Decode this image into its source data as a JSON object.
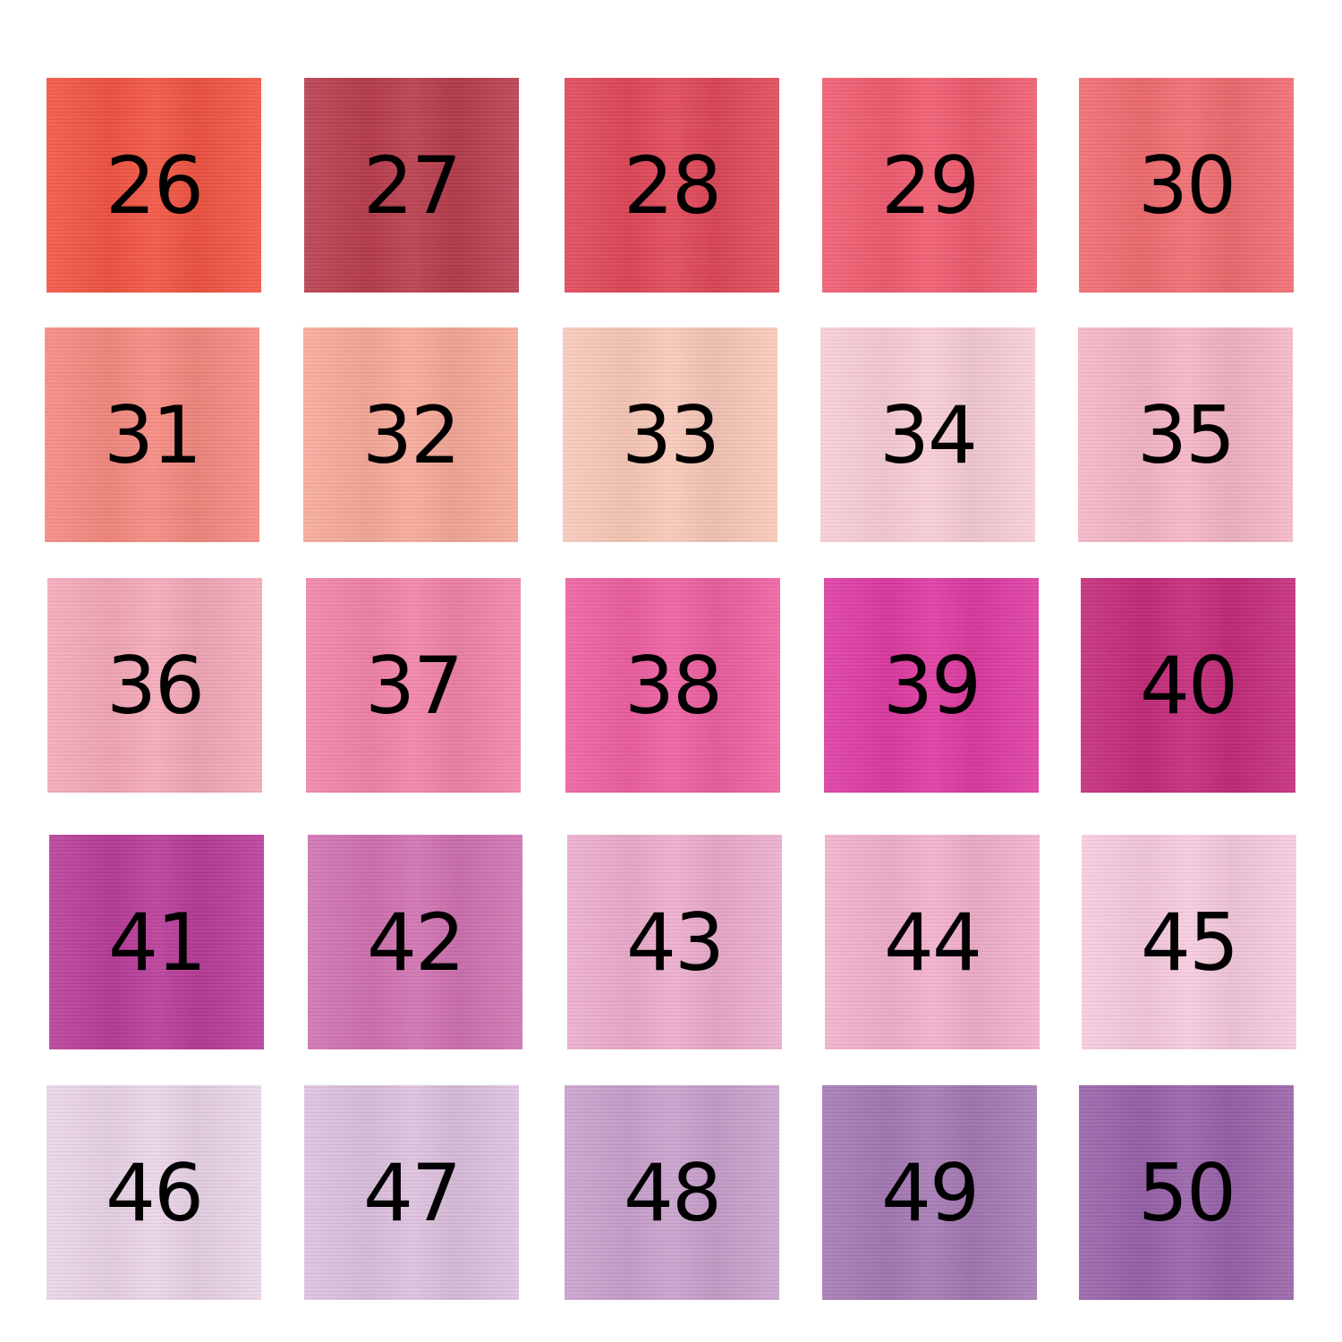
{
  "swatches": [
    {
      "label": "26",
      "color": "#f2523f"
    },
    {
      "label": "27",
      "color": "#b83a4b"
    },
    {
      "label": "28",
      "color": "#e04556"
    },
    {
      "label": "29",
      "color": "#f05a6e"
    },
    {
      "label": "30",
      "color": "#f06a6e"
    },
    {
      "label": "31",
      "color": "#f5887e"
    },
    {
      "label": "32",
      "color": "#f7a898"
    },
    {
      "label": "33",
      "color": "#f8c8b8"
    },
    {
      "label": "34",
      "color": "#f8cdd5"
    },
    {
      "label": "35",
      "color": "#f5b5c5"
    },
    {
      "label": "36",
      "color": "#f5a8b8"
    },
    {
      "label": "37",
      "color": "#f282a8"
    },
    {
      "label": "38",
      "color": "#ee5ea0"
    },
    {
      "label": "39",
      "color": "#de38a0"
    },
    {
      "label": "40",
      "color": "#c42878"
    },
    {
      "label": "41",
      "color": "#b83a98"
    },
    {
      "label": "42",
      "color": "#d070b0"
    },
    {
      "label": "43",
      "color": "#ecaccc"
    },
    {
      "label": "44",
      "color": "#f2b0cc"
    },
    {
      "label": "45",
      "color": "#f6cade"
    },
    {
      "label": "46",
      "color": "#ead4e8"
    },
    {
      "label": "47",
      "color": "#dcc0de"
    },
    {
      "label": "48",
      "color": "#c8a0cc"
    },
    {
      "label": "49",
      "color": "#a478b4"
    },
    {
      "label": "50",
      "color": "#9860a8"
    }
  ]
}
